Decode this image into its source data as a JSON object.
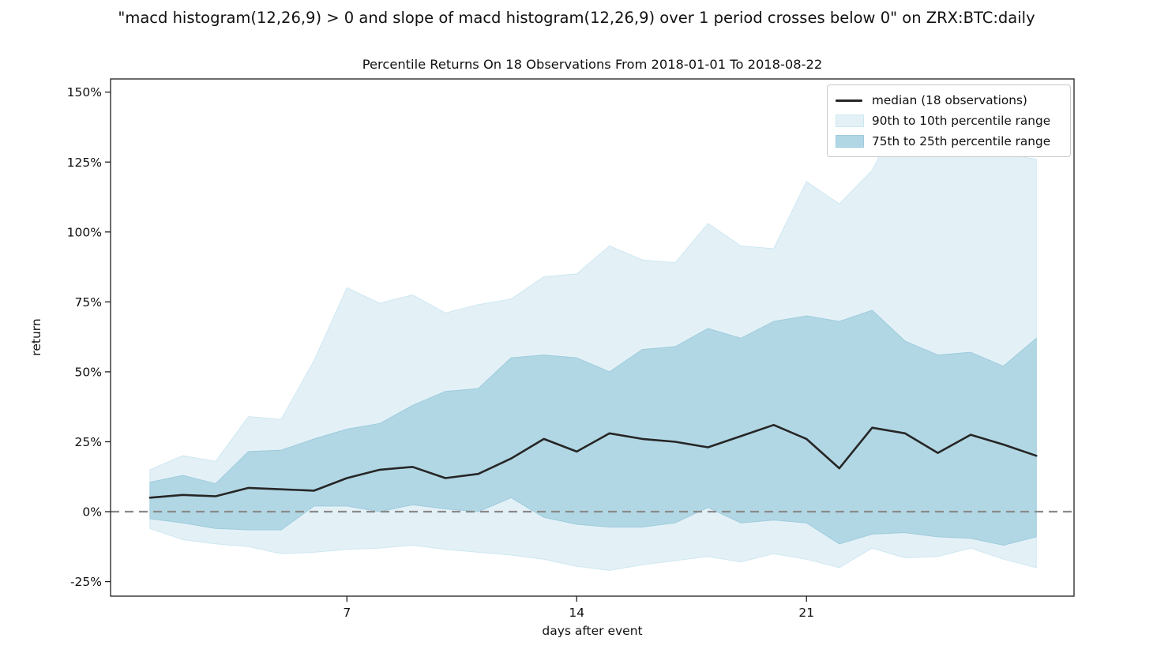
{
  "header": {
    "title": "\"macd histogram(12,26,9) > 0 and slope of macd histogram(12,26,9) over 1 period crosses below 0\" on ZRX:BTC:daily"
  },
  "chart_data": {
    "type": "area",
    "title": "Percentile Returns On 18 Observations From 2018-01-01 To 2018-08-22",
    "xlabel": "days after event",
    "ylabel": "return",
    "observations": 18,
    "x": [
      1,
      2,
      3,
      4,
      5,
      6,
      7,
      8,
      9,
      10,
      11,
      12,
      13,
      14,
      15,
      16,
      17,
      18,
      19,
      20,
      21,
      22,
      23,
      24,
      25,
      26,
      27,
      28
    ],
    "median": [
      5,
      6,
      5.5,
      8.5,
      8,
      7.5,
      12,
      15,
      16,
      12,
      13.5,
      19,
      26,
      21.5,
      28,
      26,
      25,
      23,
      27,
      31,
      26,
      15.5,
      30,
      28,
      21,
      27.5,
      24,
      20
    ],
    "p90": [
      15,
      20,
      18,
      34,
      33,
      54,
      80,
      74.5,
      77.5,
      71,
      74,
      76,
      84,
      85,
      95,
      90,
      89,
      103,
      95,
      94,
      118,
      110,
      122,
      145,
      127,
      137,
      128,
      126
    ],
    "p75": [
      10.5,
      13,
      10,
      21.5,
      22,
      26,
      29.5,
      31.5,
      38,
      43,
      44,
      55,
      56,
      55,
      50,
      58,
      59,
      65.5,
      62,
      68,
      70,
      68,
      72,
      61,
      56,
      57,
      52,
      62
    ],
    "p25": [
      -2.5,
      -4,
      -6,
      -6.5,
      -6.5,
      2,
      2,
      0,
      2.5,
      1,
      0,
      5,
      -2,
      -4.5,
      -5.5,
      -5.5,
      -4,
      1.5,
      -4,
      -3,
      -4,
      -11.5,
      -8,
      -7.5,
      -9,
      -9.5,
      -12,
      -9
    ],
    "p10": [
      -6,
      -10,
      -11.5,
      -12.5,
      -15,
      -14.5,
      -13.5,
      -13,
      -12,
      -13.5,
      -14.5,
      -15.5,
      -17,
      -19.5,
      -21,
      -19,
      -17.5,
      -16,
      -18,
      -15,
      -17,
      -20,
      -13,
      -16.5,
      -16,
      -13,
      -17,
      -20
    ],
    "bands": [
      {
        "upper": "p90",
        "lower": "p10",
        "label": "90th to 10th percentile range"
      },
      {
        "upper": "p75",
        "lower": "p25",
        "label": "75th to 25th percentile range"
      }
    ],
    "zero_line": {
      "y": 0,
      "style": "dashed"
    },
    "grid": false,
    "xlim": [
      -0.2,
      29.15
    ],
    "ylim": [
      -30.2,
      154.7
    ],
    "x_ticks": {
      "values": [
        7,
        14,
        21
      ],
      "labels": [
        "7",
        "14",
        "21"
      ]
    },
    "y_ticks": {
      "values": [
        150,
        125,
        100,
        75,
        50,
        25,
        0,
        -25
      ],
      "labels": [
        "150%",
        "125%",
        "100%",
        "75%",
        "50%",
        "25%",
        "0%",
        "-25%"
      ]
    },
    "legend": {
      "position": "upper right",
      "items": [
        {
          "label": "median (18 observations)",
          "swatch": "line"
        },
        {
          "label": "90th to 10th percentile range",
          "swatch": "band-light"
        },
        {
          "label": "75th to 25th percentile range",
          "swatch": "band-medium"
        }
      ]
    }
  },
  "colors": {
    "median": "#262626",
    "band_light": "#e3f1f7",
    "band_light_edge": "#cde7f1",
    "band_medium": "#b2d7e4",
    "band_medium_edge": "#9ecbdd",
    "zero_line": "#8a8a8a",
    "spine": "#1f1f1f",
    "text": "#111111",
    "legend_border": "#c9c9c9"
  }
}
